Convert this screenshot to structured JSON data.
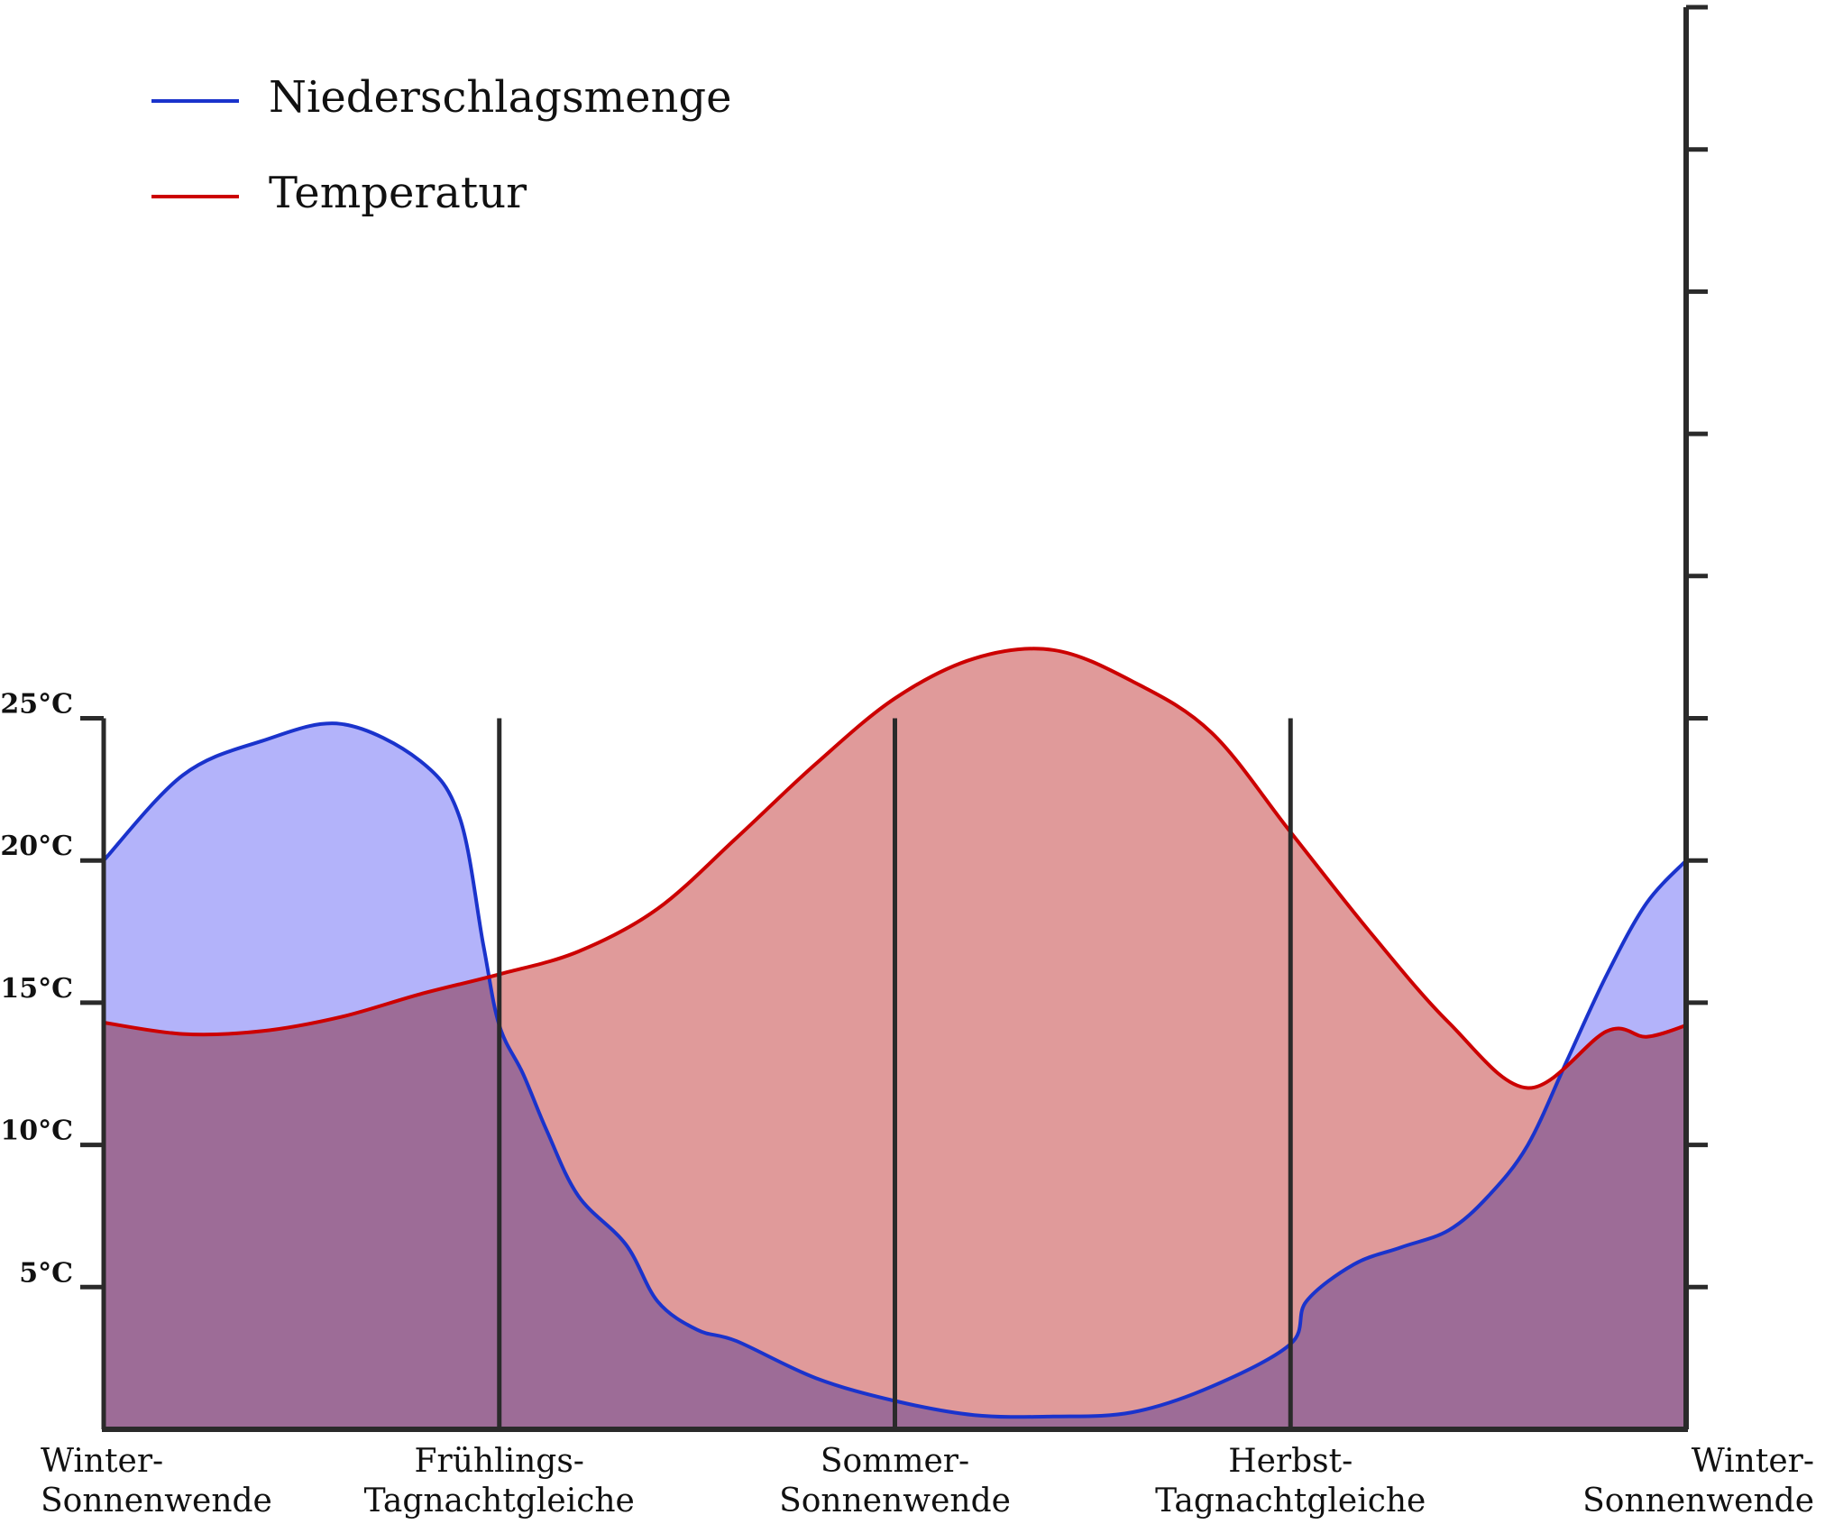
{
  "chart_data": {
    "type": "area",
    "title": "",
    "xlabel": "",
    "ylabel": "",
    "categories": [
      [
        "Winter-",
        "Sonnenwende"
      ],
      [
        "Frühlings-",
        "Tagnachtgleiche"
      ],
      [
        "Sommer-",
        "Sonnenwende"
      ],
      [
        "Herbst-",
        "Tagnachtgleiche"
      ],
      [
        "Winter-",
        "Sonnenwende"
      ]
    ],
    "xlim": [
      0,
      1
    ],
    "ylim": [
      0,
      50
    ],
    "yticks": [
      5,
      10,
      15,
      20,
      25
    ],
    "ytick_labels": [
      "5°C",
      "10°C",
      "15°C",
      "20°C",
      "25°C"
    ],
    "right_axis_ticks": [
      5,
      10,
      15,
      20,
      25,
      30,
      35,
      40,
      45,
      50
    ],
    "legend_position": "top-left",
    "series": [
      {
        "name": "Niederschlagsmenge",
        "color": "#1a33cc",
        "fill": "#b3b3fa",
        "x": [
          0,
          0.05,
          0.1,
          0.15,
          0.2,
          0.225,
          0.24,
          0.25,
          0.265,
          0.28,
          0.3,
          0.33,
          0.35,
          0.375,
          0.4,
          0.45,
          0.5,
          0.55,
          0.6,
          0.65,
          0.7,
          0.75,
          0.76,
          0.79,
          0.82,
          0.85,
          0.875,
          0.9,
          0.925,
          0.95,
          0.975,
          1.0
        ],
        "y": [
          20,
          23,
          24.2,
          24.8,
          23.5,
          21.5,
          17,
          14.2,
          12.5,
          10.5,
          8.2,
          6.5,
          4.5,
          3.5,
          3.1,
          1.8,
          1.0,
          0.5,
          0.45,
          0.6,
          1.5,
          3.0,
          4.5,
          5.8,
          6.4,
          7.0,
          8.2,
          10.0,
          13.0,
          16.0,
          18.5,
          20.0
        ]
      },
      {
        "name": "Temperatur",
        "color": "#cc0000",
        "fill": "#e09a9a",
        "x": [
          0,
          0.05,
          0.1,
          0.15,
          0.2,
          0.25,
          0.3,
          0.35,
          0.4,
          0.45,
          0.5,
          0.55,
          0.6,
          0.65,
          0.7,
          0.75,
          0.8,
          0.85,
          0.9,
          0.95,
          0.975,
          1.0
        ],
        "y": [
          14.3,
          13.9,
          14.0,
          14.5,
          15.3,
          16.0,
          16.8,
          18.3,
          20.8,
          23.4,
          25.7,
          27.1,
          27.4,
          26.3,
          24.5,
          21.0,
          17.5,
          14.3,
          12.0,
          14.0,
          13.8,
          14.2
        ]
      }
    ]
  }
}
